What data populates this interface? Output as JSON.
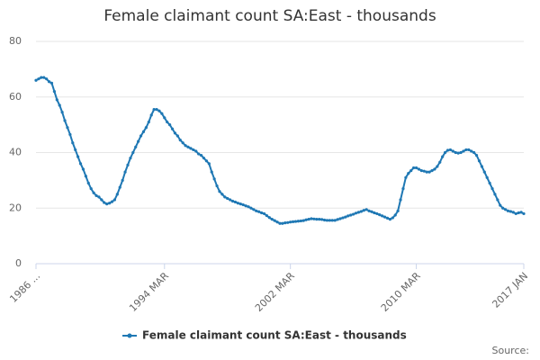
{
  "chart_data": {
    "type": "line",
    "title": "Female claimant count SA:East - thousands",
    "categories": [
      "1986 ...",
      null,
      null,
      null,
      null,
      null,
      null,
      null,
      null,
      null,
      null,
      null,
      null,
      null,
      null,
      null,
      null,
      null,
      null,
      null,
      null,
      null,
      null,
      null,
      null,
      null,
      null,
      null,
      null,
      null,
      null,
      null,
      null,
      null,
      null,
      null,
      null,
      null,
      null,
      null,
      null,
      null,
      null,
      null,
      null,
      null,
      null,
      null,
      null,
      "1994 MAR",
      null,
      null,
      null,
      null,
      null,
      null,
      null,
      null,
      null,
      null,
      null,
      null,
      null,
      null,
      null,
      null,
      null,
      null,
      null,
      null,
      null,
      null,
      null,
      null,
      null,
      null,
      null,
      null,
      null,
      null,
      null,
      null,
      null,
      null,
      null,
      null,
      null,
      null,
      null,
      null,
      null,
      null,
      null,
      null,
      null,
      null,
      null,
      "2002 MAR",
      null,
      null,
      null,
      null,
      null,
      null,
      null,
      null,
      null,
      null,
      null,
      null,
      null,
      null,
      null,
      null,
      null,
      null,
      null,
      null,
      null,
      null,
      null,
      null,
      null,
      null,
      null,
      null,
      null,
      null,
      null,
      null,
      null,
      null,
      null,
      null,
      null,
      null,
      null,
      null,
      null,
      null,
      null,
      null,
      null,
      null,
      null,
      "2010 MAR",
      null,
      null,
      null,
      null,
      null,
      null,
      null,
      null,
      null,
      null,
      null,
      null,
      null,
      null,
      null,
      null,
      null,
      null,
      null,
      null,
      null,
      null,
      null,
      null,
      null,
      null,
      null,
      null,
      null,
      null,
      null,
      null,
      null,
      null,
      null,
      null,
      null,
      null,
      null,
      null,
      "2017 JAN"
    ],
    "series": [
      {
        "name": "Female claimant count SA:East - thousands",
        "color": "#1f78b4",
        "values": [
          66,
          66.5,
          67,
          67,
          66.5,
          65.5,
          65,
          62,
          59,
          57,
          54.5,
          51.5,
          49,
          46.5,
          43.5,
          41,
          38.5,
          36,
          34,
          31.5,
          29,
          27,
          25.5,
          24.5,
          24,
          23,
          22,
          21.5,
          21.8,
          22.3,
          23,
          25,
          27.5,
          30,
          33,
          35.5,
          38,
          40,
          42,
          44,
          46,
          47.5,
          49,
          51,
          53.5,
          55.5,
          55.5,
          55,
          54,
          52.5,
          51,
          50,
          48.5,
          47,
          46,
          44.5,
          43.5,
          42.5,
          42,
          41.5,
          41,
          40.5,
          39.5,
          39,
          38,
          37,
          36,
          33,
          30.5,
          28,
          26,
          25,
          24,
          23.5,
          23,
          22.5,
          22.2,
          21.8,
          21.5,
          21.2,
          20.8,
          20.5,
          20,
          19.5,
          19,
          18.7,
          18.3,
          18,
          17.3,
          16.6,
          16,
          15.5,
          15,
          14.5,
          14.5,
          14.7,
          14.8,
          15,
          15.1,
          15.2,
          15.3,
          15.4,
          15.5,
          15.8,
          16,
          16.2,
          16.1,
          16,
          16,
          15.9,
          15.7,
          15.6,
          15.6,
          15.6,
          15.6,
          15.9,
          16.2,
          16.5,
          16.8,
          17.2,
          17.5,
          17.8,
          18.2,
          18.5,
          18.8,
          19.2,
          19.5,
          19,
          18.7,
          18.3,
          18,
          17.6,
          17.2,
          16.8,
          16.4,
          16,
          16.5,
          17.5,
          19,
          23,
          27,
          31,
          32.5,
          33.5,
          34.5,
          34.5,
          34,
          33.5,
          33.3,
          33,
          33,
          33.5,
          34,
          35,
          36.5,
          38.5,
          40,
          40.8,
          41,
          40.5,
          40,
          39.8,
          40,
          40.5,
          41,
          41,
          40.5,
          40,
          39,
          37,
          35,
          33,
          31,
          29,
          27,
          25,
          23,
          21,
          20,
          19.5,
          19,
          18.8,
          18.5,
          18,
          18.3,
          18.5,
          18
        ]
      }
    ],
    "ylim": [
      0,
      80
    ],
    "yticks": [
      0,
      20,
      40,
      60,
      80
    ],
    "grid": true,
    "source": "Source:"
  }
}
